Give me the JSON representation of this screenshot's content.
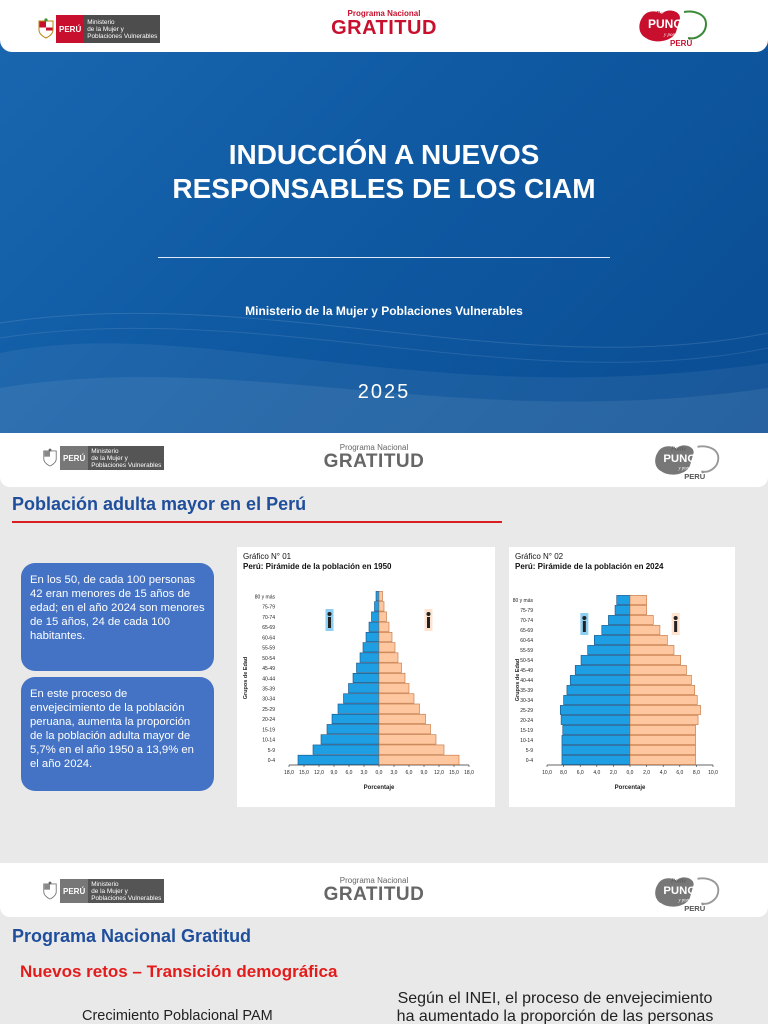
{
  "header": {
    "gov_country": "PERÚ",
    "gov_ministry_lines": [
      "Ministerio",
      "de la Mujer y",
      "Poblaciones Vulnerables"
    ],
    "program_small": "Programa Nacional",
    "program_big": "GRATITUD",
    "punche_lines": [
      "Ponle",
      "PUNCHE",
      "y ponemos todos",
      "PERÚ"
    ]
  },
  "slide1": {
    "title_line1": "INDUCCIÓN A NUEVOS",
    "title_line2": "RESPONSABLES DE LOS CIAM",
    "organization": "Ministerio de la Mujer y Poblaciones Vulnerables",
    "year": "2025"
  },
  "slide2": {
    "heading": "Población adulta mayor en el Perú",
    "bubble1": "En los 50, de cada 100 personas 42 eran menores de 15 años de edad; en el año 2024 son menores de 15 años, 24 de cada 100 habitantes.",
    "bubble2": "En este proceso de envejecimiento de la población peruana, aumenta la proporción de la población adulta mayor de 5,7% en el año 1950 a 13,9% en el año 2024."
  },
  "slide3": {
    "heading": "Programa Nacional Gratitud",
    "subheading": "Nuevos retos – Transición demográfica",
    "left_caption": "Crecimiento Poblacional PAM",
    "right_line1": "Según el INEI, el proceso de envejecimiento",
    "right_line2": "ha aumentado la proporción de las personas"
  },
  "chart_data": [
    {
      "type": "bar",
      "orientation": "horizontal-pyramid",
      "label": "Gráfico N° 01",
      "title": "Perú: Pirámide de la población en 1950",
      "xlabel": "Porcentaje",
      "ylabel": "Grupos de Edad",
      "xticks": [
        "18,0",
        "15,0",
        "12,0",
        "9,0",
        "6,0",
        "3,0",
        "0,0",
        "3,0",
        "6,0",
        "9,0",
        "12,0",
        "15,0",
        "18,0"
      ],
      "xlim": [
        -18,
        18
      ],
      "categories": [
        "0-4",
        "5-9",
        "10-14",
        "15-19",
        "20-24",
        "25-29",
        "30-34",
        "35-39",
        "40-44",
        "45-49",
        "50-54",
        "55-59",
        "60-64",
        "65-69",
        "70-74",
        "75-79",
        "80 y más"
      ],
      "series": [
        {
          "name": "Hombres",
          "color": "#1e9ee3",
          "values": [
            16.2,
            13.2,
            11.6,
            10.4,
            9.4,
            8.2,
            7.1,
            6.1,
            5.2,
            4.5,
            3.8,
            3.2,
            2.6,
            2.0,
            1.5,
            0.9,
            0.6
          ]
        },
        {
          "name": "Mujeres",
          "color": "#ffc79f",
          "values": [
            16.0,
            13.0,
            11.4,
            10.3,
            9.3,
            8.1,
            7.0,
            6.0,
            5.2,
            4.5,
            3.8,
            3.2,
            2.6,
            2.0,
            1.5,
            1.0,
            0.7
          ]
        }
      ]
    },
    {
      "type": "bar",
      "orientation": "horizontal-pyramid",
      "label": "Gráfico N° 02",
      "title": "Perú: Pirámide de la población en 2024",
      "xlabel": "Porcentaje",
      "ylabel": "Grupos de Edad",
      "xticks": [
        "10,0",
        "8,0",
        "6,0",
        "4,0",
        "2,0",
        "0,0",
        "2,0",
        "4,0",
        "6,0",
        "8,0",
        "10,0"
      ],
      "xlim": [
        -10,
        10
      ],
      "categories": [
        "0-4",
        "5-9",
        "10-14",
        "15-19",
        "20-24",
        "25-29",
        "30-34",
        "35-39",
        "40-44",
        "45-49",
        "50-54",
        "55-59",
        "60-64",
        "65-69",
        "70-74",
        "75-79",
        "80 y más"
      ],
      "series": [
        {
          "name": "Hombres",
          "color": "#1e9ee3",
          "values": [
            8.2,
            8.2,
            8.2,
            8.1,
            8.3,
            8.4,
            8.0,
            7.6,
            7.2,
            6.6,
            5.9,
            5.1,
            4.3,
            3.4,
            2.6,
            1.8,
            1.6
          ]
        },
        {
          "name": "Mujeres",
          "color": "#ffc79f",
          "values": [
            7.9,
            7.9,
            7.9,
            7.9,
            8.2,
            8.5,
            8.1,
            7.8,
            7.4,
            6.8,
            6.1,
            5.3,
            4.5,
            3.6,
            2.8,
            2.0,
            2.0
          ]
        }
      ]
    }
  ]
}
